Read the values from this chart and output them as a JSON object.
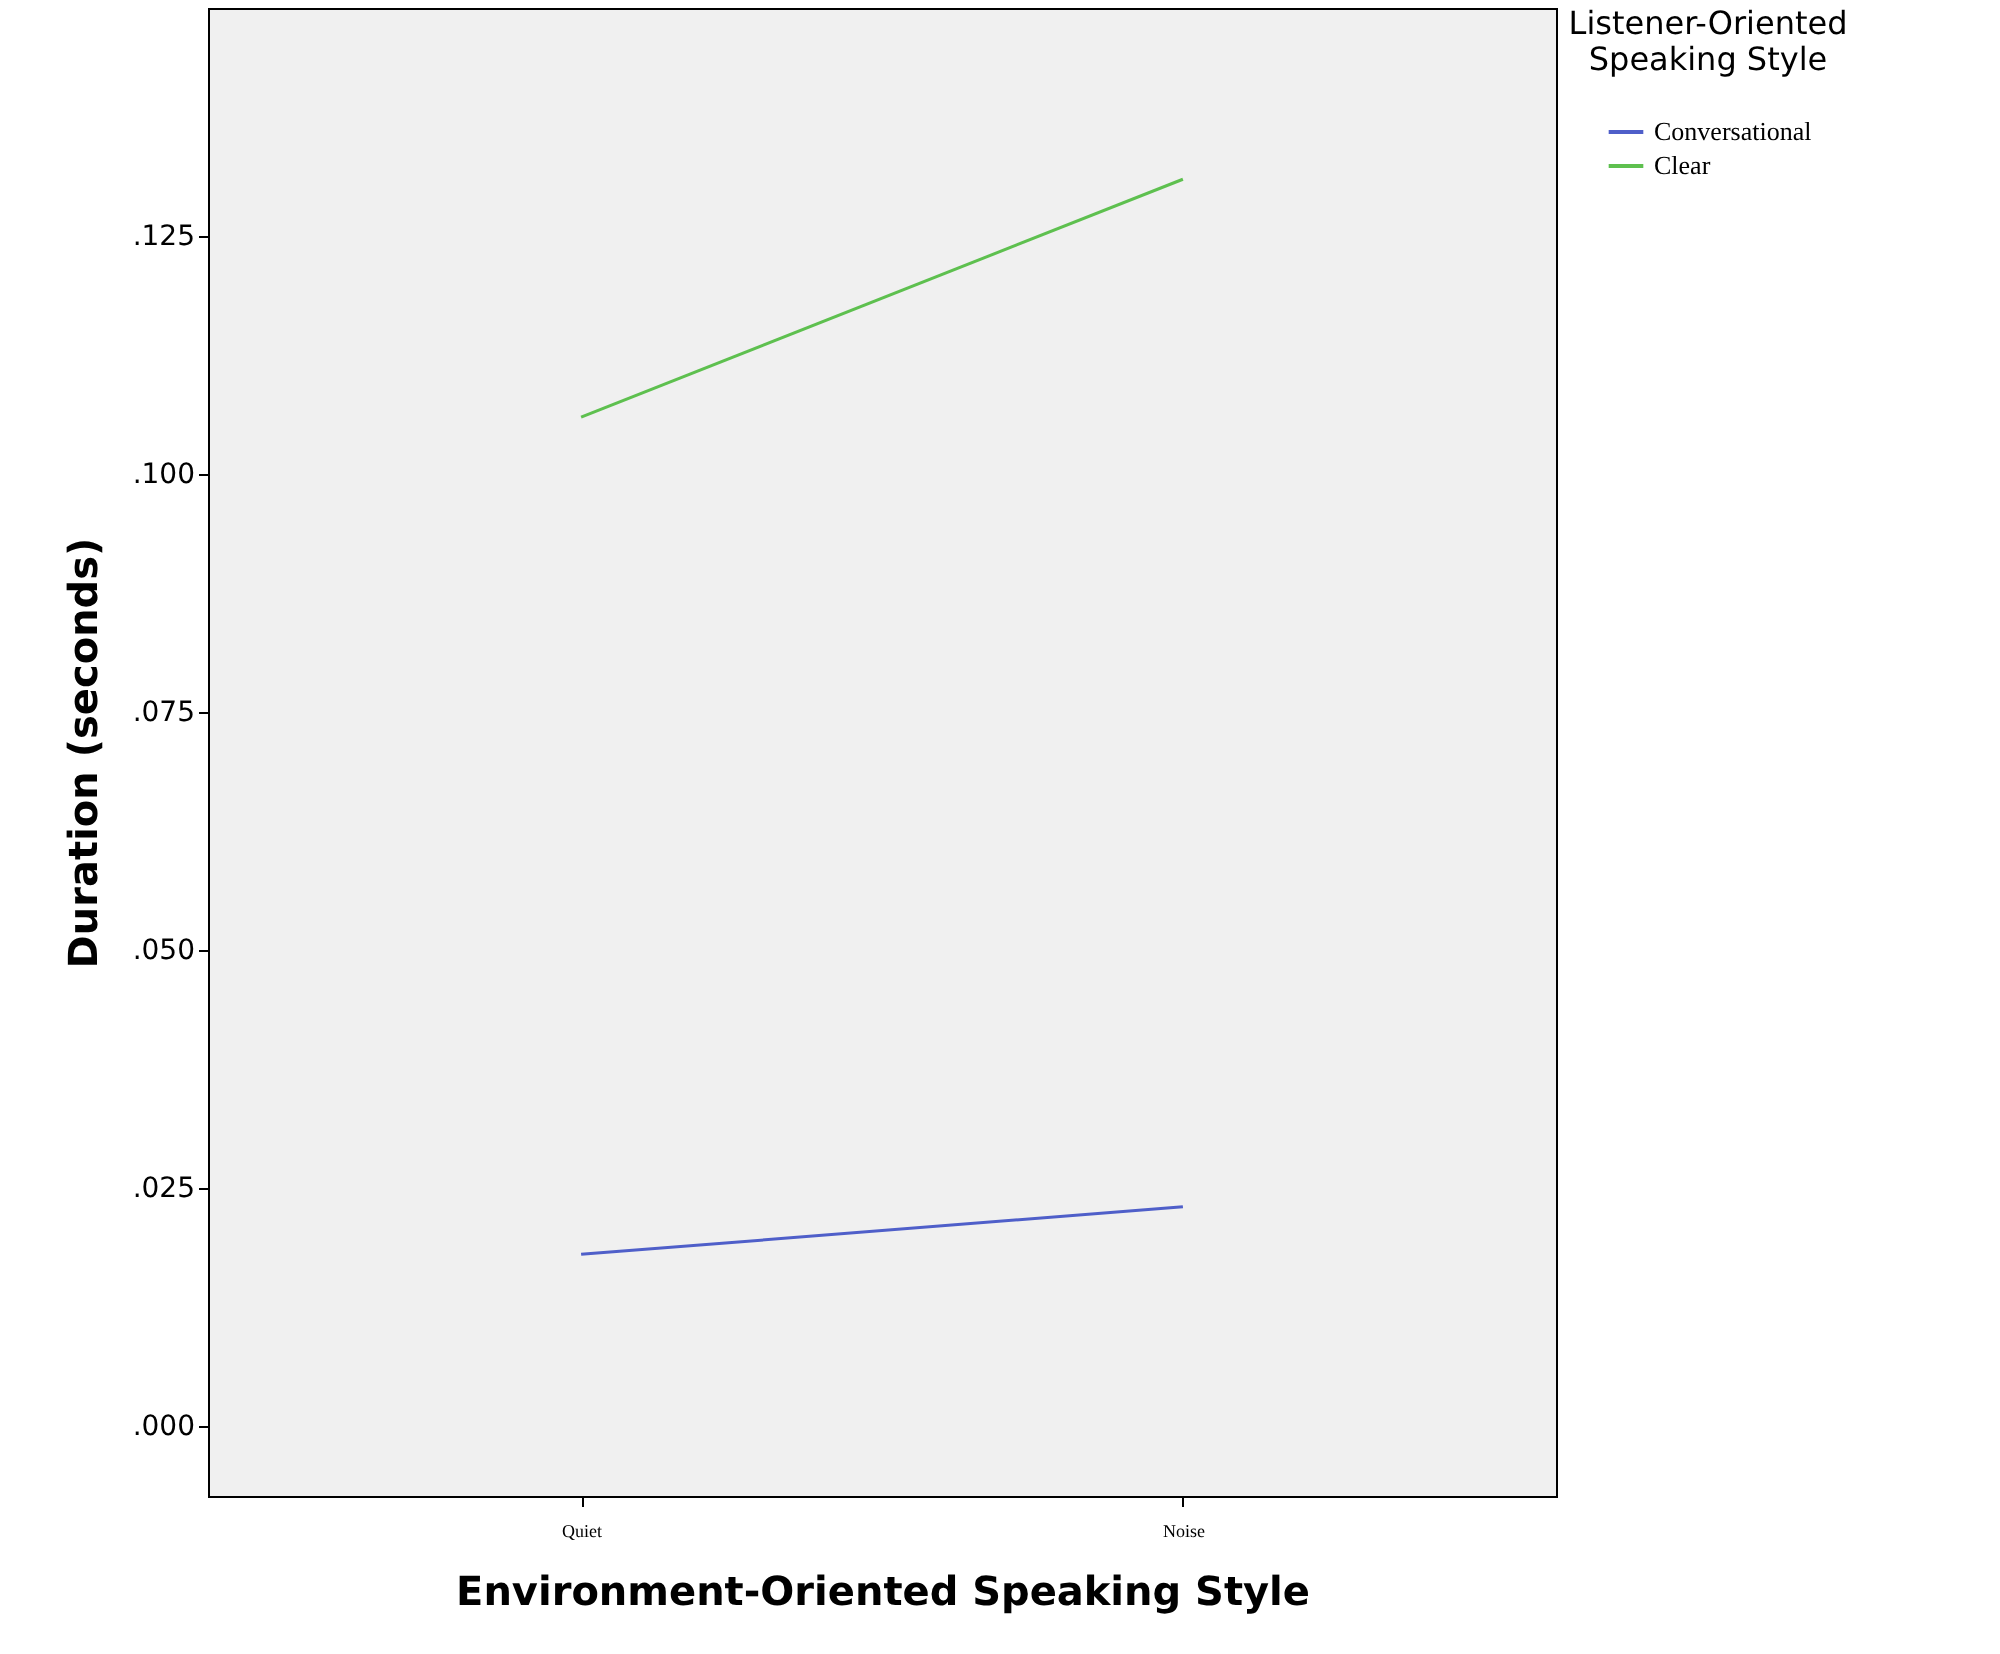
{
  "chart_data": {
    "type": "line",
    "xlabel": "Environment-Oriented Speaking Style",
    "ylabel": "Duration (seconds)",
    "legend_title": "Listener-Oriented Speaking Style",
    "categories": [
      "Quiet",
      "Noise"
    ],
    "series": [
      {
        "name": "Conversational",
        "color": "#4f5fc9",
        "values": [
          0.018,
          0.023
        ]
      },
      {
        "name": "Clear",
        "color": "#5ec04f",
        "values": [
          0.106,
          0.131
        ]
      }
    ],
    "ylim": [
      -0.0074,
      0.149
    ],
    "yticks": [
      {
        "value": 0,
        "label": ".000"
      },
      {
        "value": 0.025,
        "label": ".025"
      },
      {
        "value": 0.05,
        "label": ".050"
      },
      {
        "value": 0.075,
        "label": ".075"
      },
      {
        "value": 0.1,
        "label": ".100"
      },
      {
        "value": 0.125,
        "label": ".125"
      }
    ],
    "grid": false,
    "legend": "top right",
    "marker": "none",
    "line_style": "solid"
  }
}
